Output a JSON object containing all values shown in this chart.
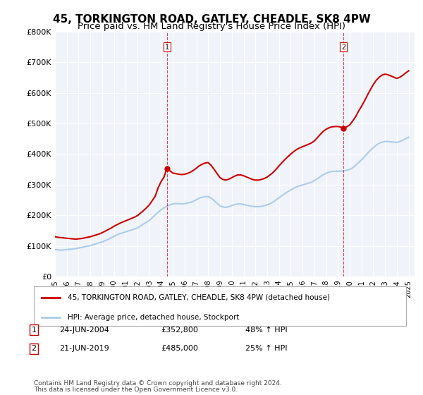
{
  "title": "45, TORKINGTON ROAD, GATLEY, CHEADLE, SK8 4PW",
  "subtitle": "Price paid vs. HM Land Registry's House Price Index (HPI)",
  "title_fontsize": 11,
  "subtitle_fontsize": 9.5,
  "ylabel": "",
  "ylim": [
    0,
    800000
  ],
  "yticks": [
    0,
    100000,
    200000,
    300000,
    400000,
    500000,
    600000,
    700000,
    800000
  ],
  "ytick_labels": [
    "£0",
    "£100K",
    "£200K",
    "£300K",
    "£400K",
    "£500K",
    "£600K",
    "£700K",
    "£800K"
  ],
  "xlim_start": 1995.0,
  "xlim_end": 2025.5,
  "xticks": [
    1995,
    1996,
    1997,
    1998,
    1999,
    2000,
    2001,
    2002,
    2003,
    2004,
    2005,
    2006,
    2007,
    2008,
    2009,
    2010,
    2011,
    2012,
    2013,
    2014,
    2015,
    2016,
    2017,
    2018,
    2019,
    2020,
    2021,
    2022,
    2023,
    2024,
    2025
  ],
  "property_color": "#cc0000",
  "hpi_color": "#aaccee",
  "marker_line_color": "#cc0000",
  "legend_label_property": "45, TORKINGTON ROAD, GATLEY, CHEADLE, SK8 4PW (detached house)",
  "legend_label_hpi": "HPI: Average price, detached house, Stockport",
  "sale1_date": "24-JUN-2004",
  "sale1_price": "£352,800",
  "sale1_pct": "48% ↑ HPI",
  "sale1_year": 2004.48,
  "sale1_value": 352800,
  "sale2_date": "21-JUN-2019",
  "sale2_price": "£485,000",
  "sale2_pct": "25% ↑ HPI",
  "sale2_year": 2019.47,
  "sale2_value": 485000,
  "footnote1": "Contains HM Land Registry data © Crown copyright and database right 2024.",
  "footnote2": "This data is licensed under the Open Government Licence v3.0.",
  "bg_color": "#f0f4fa",
  "plot_bg_color": "#f0f4fa",
  "hpi_years": [
    1995.0,
    1995.25,
    1995.5,
    1995.75,
    1996.0,
    1996.25,
    1996.5,
    1996.75,
    1997.0,
    1997.25,
    1997.5,
    1997.75,
    1998.0,
    1998.25,
    1998.5,
    1998.75,
    1999.0,
    1999.25,
    1999.5,
    1999.75,
    2000.0,
    2000.25,
    2000.5,
    2000.75,
    2001.0,
    2001.25,
    2001.5,
    2001.75,
    2002.0,
    2002.25,
    2002.5,
    2002.75,
    2003.0,
    2003.25,
    2003.5,
    2003.75,
    2004.0,
    2004.25,
    2004.5,
    2004.75,
    2005.0,
    2005.25,
    2005.5,
    2005.75,
    2006.0,
    2006.25,
    2006.5,
    2006.75,
    2007.0,
    2007.25,
    2007.5,
    2007.75,
    2008.0,
    2008.25,
    2008.5,
    2008.75,
    2009.0,
    2009.25,
    2009.5,
    2009.75,
    2010.0,
    2010.25,
    2010.5,
    2010.75,
    2011.0,
    2011.25,
    2011.5,
    2011.75,
    2012.0,
    2012.25,
    2012.5,
    2012.75,
    2013.0,
    2013.25,
    2013.5,
    2013.75,
    2014.0,
    2014.25,
    2014.5,
    2014.75,
    2015.0,
    2015.25,
    2015.5,
    2015.75,
    2016.0,
    2016.25,
    2016.5,
    2016.75,
    2017.0,
    2017.25,
    2017.5,
    2017.75,
    2018.0,
    2018.25,
    2018.5,
    2018.75,
    2019.0,
    2019.25,
    2019.5,
    2019.75,
    2020.0,
    2020.25,
    2020.5,
    2020.75,
    2021.0,
    2021.25,
    2021.5,
    2021.75,
    2022.0,
    2022.25,
    2022.5,
    2022.75,
    2023.0,
    2023.25,
    2023.5,
    2023.75,
    2024.0,
    2024.25,
    2024.5,
    2024.75,
    2025.0
  ],
  "hpi_values": [
    88000,
    87000,
    86000,
    87000,
    88000,
    89000,
    90000,
    91000,
    93000,
    95000,
    97000,
    99000,
    101000,
    104000,
    107000,
    110000,
    113000,
    117000,
    121000,
    126000,
    131000,
    136000,
    140000,
    143000,
    146000,
    149000,
    152000,
    155000,
    159000,
    165000,
    171000,
    177000,
    183000,
    192000,
    201000,
    210000,
    218000,
    224000,
    230000,
    234000,
    237000,
    238000,
    238000,
    237000,
    238000,
    240000,
    242000,
    246000,
    251000,
    256000,
    259000,
    261000,
    261000,
    256000,
    248000,
    239000,
    231000,
    227000,
    226000,
    228000,
    232000,
    235000,
    237000,
    237000,
    235000,
    233000,
    231000,
    229000,
    228000,
    228000,
    229000,
    231000,
    234000,
    238000,
    243000,
    250000,
    257000,
    264000,
    271000,
    277000,
    283000,
    288000,
    293000,
    296000,
    299000,
    302000,
    305000,
    308000,
    313000,
    319000,
    326000,
    332000,
    337000,
    341000,
    343000,
    344000,
    344000,
    344000,
    345000,
    347000,
    350000,
    355000,
    363000,
    372000,
    381000,
    391000,
    402000,
    412000,
    421000,
    429000,
    435000,
    439000,
    441000,
    441000,
    440000,
    439000,
    438000,
    441000,
    445000,
    450000,
    455000
  ],
  "property_years": [
    1995.0,
    1995.25,
    1995.5,
    1995.75,
    1996.0,
    1996.25,
    1996.5,
    1996.75,
    1997.0,
    1997.25,
    1997.5,
    1997.75,
    1998.0,
    1998.25,
    1998.5,
    1998.75,
    1999.0,
    1999.25,
    1999.5,
    1999.75,
    2000.0,
    2000.25,
    2000.5,
    2000.75,
    2001.0,
    2001.25,
    2001.5,
    2001.75,
    2002.0,
    2002.25,
    2002.5,
    2002.75,
    2003.0,
    2003.25,
    2003.5,
    2003.75,
    2004.0,
    2004.25,
    2004.48,
    2004.75,
    2005.0,
    2005.25,
    2005.5,
    2005.75,
    2006.0,
    2006.25,
    2006.5,
    2006.75,
    2007.0,
    2007.25,
    2007.5,
    2007.75,
    2008.0,
    2008.25,
    2008.5,
    2008.75,
    2009.0,
    2009.25,
    2009.5,
    2009.75,
    2010.0,
    2010.25,
    2010.5,
    2010.75,
    2011.0,
    2011.25,
    2011.5,
    2011.75,
    2012.0,
    2012.25,
    2012.5,
    2012.75,
    2013.0,
    2013.25,
    2013.5,
    2013.75,
    2014.0,
    2014.25,
    2014.5,
    2014.75,
    2015.0,
    2015.25,
    2015.5,
    2015.75,
    2016.0,
    2016.25,
    2016.5,
    2016.75,
    2017.0,
    2017.25,
    2017.5,
    2017.75,
    2018.0,
    2018.25,
    2018.5,
    2018.75,
    2019.0,
    2019.25,
    2019.47,
    2019.75,
    2020.0,
    2020.25,
    2020.5,
    2020.75,
    2021.0,
    2021.25,
    2021.5,
    2021.75,
    2022.0,
    2022.25,
    2022.5,
    2022.75,
    2023.0,
    2023.25,
    2023.5,
    2023.75,
    2024.0,
    2024.25,
    2024.5,
    2024.75,
    2025.0
  ],
  "property_values": [
    130000,
    128000,
    127000,
    126000,
    125000,
    124000,
    123000,
    122000,
    123000,
    124000,
    126000,
    128000,
    130000,
    133000,
    136000,
    139000,
    143000,
    148000,
    153000,
    158000,
    164000,
    169000,
    174000,
    178000,
    182000,
    186000,
    190000,
    194000,
    199000,
    207000,
    215000,
    224000,
    234000,
    248000,
    262000,
    290000,
    310000,
    325000,
    352800,
    345000,
    338000,
    336000,
    334000,
    333000,
    334000,
    337000,
    341000,
    347000,
    354000,
    362000,
    367000,
    371000,
    372000,
    363000,
    350000,
    336000,
    323000,
    317000,
    315000,
    318000,
    323000,
    328000,
    332000,
    332000,
    329000,
    325000,
    321000,
    317000,
    315000,
    315000,
    317000,
    320000,
    325000,
    332000,
    340000,
    350000,
    361000,
    372000,
    382000,
    391000,
    400000,
    408000,
    415000,
    420000,
    424000,
    428000,
    432000,
    436000,
    443000,
    453000,
    464000,
    474000,
    481000,
    486000,
    489000,
    490000,
    490000,
    488000,
    485000,
    489000,
    495000,
    508000,
    522000,
    540000,
    556000,
    573000,
    592000,
    610000,
    627000,
    641000,
    651000,
    658000,
    661000,
    659000,
    655000,
    651000,
    647000,
    651000,
    657000,
    665000,
    672000
  ]
}
